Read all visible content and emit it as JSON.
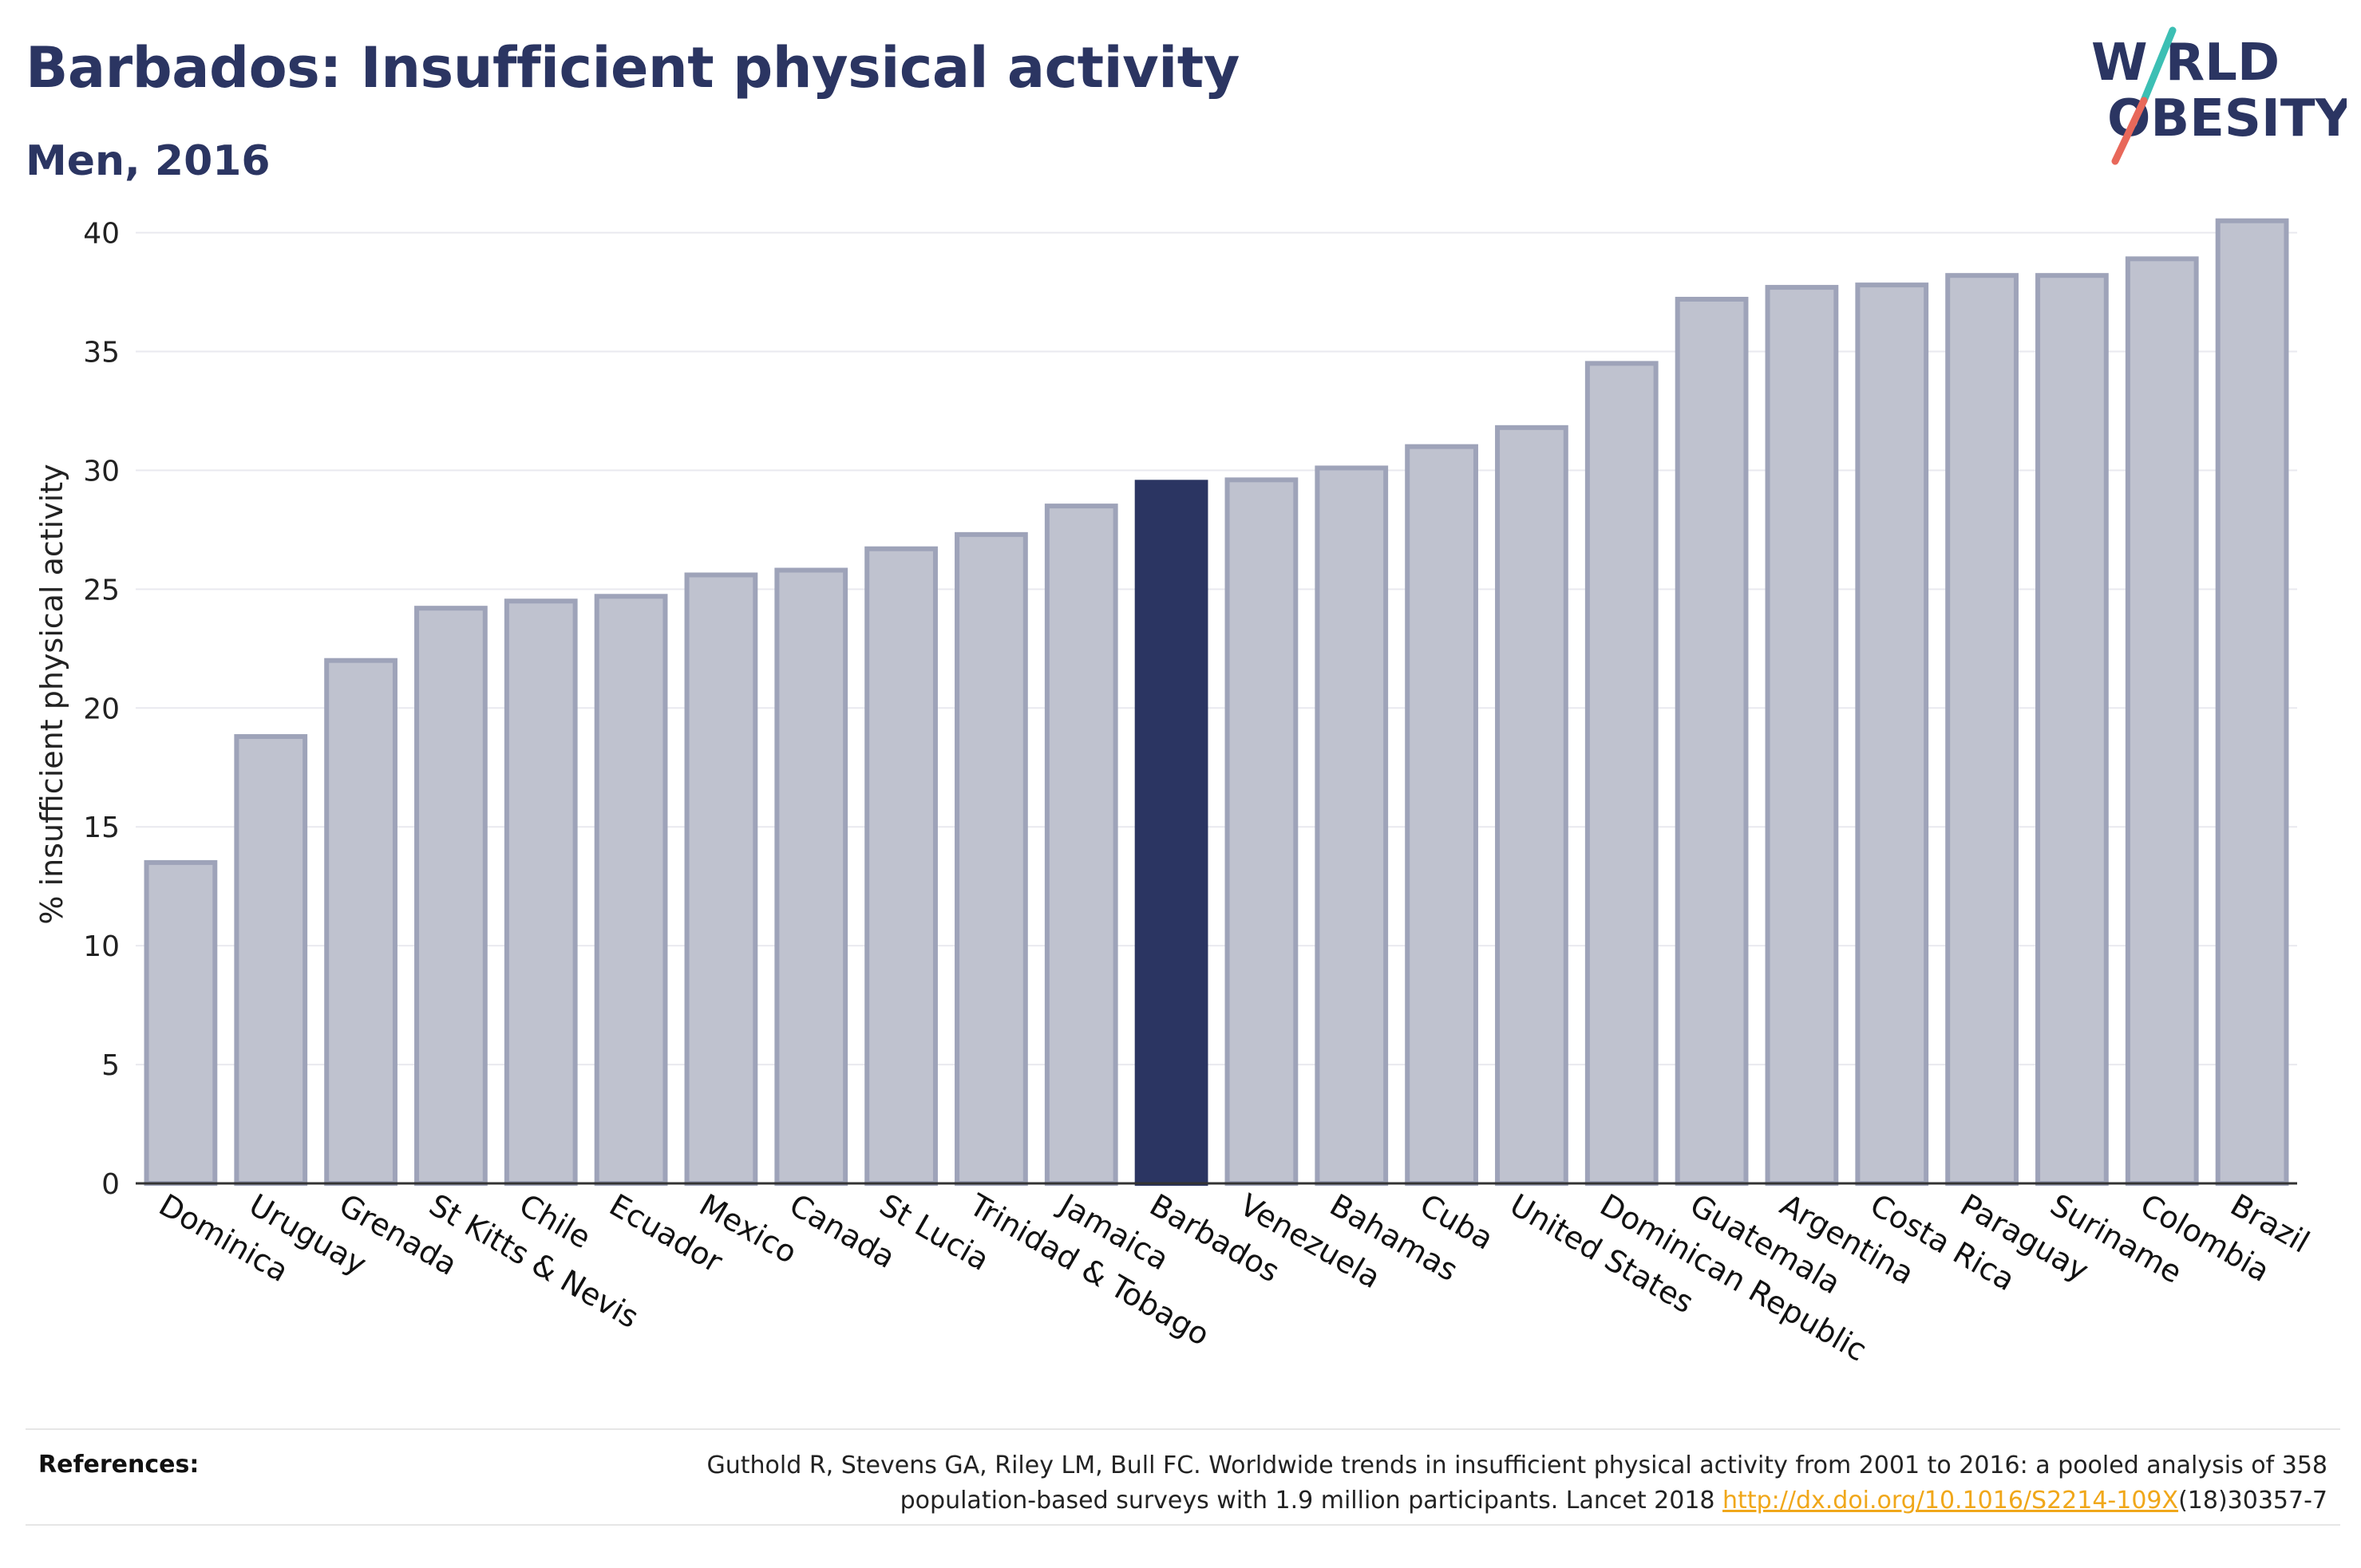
{
  "header": {
    "title": "Barbados: Insufficient physical activity",
    "subtitle": "Men, 2016"
  },
  "logo": {
    "line1": "W RLD",
    "line2": "OBESITY",
    "colors": {
      "text": "#2b3562",
      "slash_top": "#3cbfb4",
      "slash_bottom": "#e8685a"
    }
  },
  "colors": {
    "bar": "#bfc2cf",
    "bar_border": "#9ea3b9",
    "highlight": "#2b3562",
    "grid": "#e9e9ef",
    "axis": "#333333"
  },
  "chart_data": {
    "type": "bar",
    "ylabel": "% insufficient physical activity",
    "xlabel": "",
    "ylim": [
      0,
      42
    ],
    "yticks": [
      0,
      5,
      10,
      15,
      20,
      25,
      30,
      35,
      40
    ],
    "grid": true,
    "highlight_category": "Barbados",
    "categories": [
      "Dominica",
      "Uruguay",
      "Grenada",
      "St Kitts & Nevis",
      "Chile",
      "Ecuador",
      "Mexico",
      "Canada",
      "St Lucia",
      "Trinidad & Tobago",
      "Jamaica",
      "Barbados",
      "Venezuela",
      "Bahamas",
      "Cuba",
      "United States",
      "Dominican Republic",
      "Guatemala",
      "Argentina",
      "Costa Rica",
      "Paraguay",
      "Suriname",
      "Colombia",
      "Brazil"
    ],
    "values": [
      13.5,
      18.8,
      22.0,
      24.2,
      24.5,
      24.7,
      25.6,
      25.8,
      26.7,
      27.3,
      28.5,
      29.5,
      29.6,
      30.1,
      31.0,
      31.8,
      34.5,
      37.2,
      37.7,
      37.8,
      38.2,
      38.2,
      38.9,
      40.5
    ]
  },
  "references": {
    "label": "References:",
    "line1": "Guthold R, Stevens GA, Riley LM, Bull FC. Worldwide trends in insufficient physical activity from 2001 to 2016: a pooled analysis of 358",
    "line2_before": "population-based surveys with 1.9 million participants. Lancet 2018 ",
    "link": "http://dx.doi.org/10.1016/S2214-109X",
    "line2_after": "(18)30357-7"
  }
}
